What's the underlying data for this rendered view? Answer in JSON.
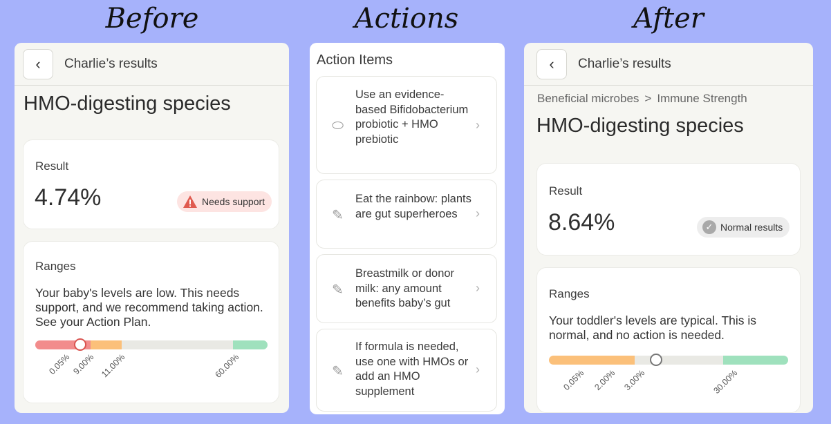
{
  "headings": {
    "before": "Before",
    "actions": "Actions",
    "after": "After"
  },
  "before": {
    "header_title": "Charlie’s results",
    "title": "HMO-digesting species",
    "result_label": "Result",
    "result_value": "4.74%",
    "badge": "Needs support",
    "ranges_label": "Ranges",
    "ranges_desc": "Your baby's levels are low. This needs support, and we recommend taking action. See your Action Plan.",
    "ticks": [
      "0.05%",
      "9.00%",
      "11.00%",
      "60.00%"
    ]
  },
  "actions": {
    "title": "Action Items",
    "items": [
      {
        "icon": "pill-icon",
        "text": "Use an evidence-based Bifidobacterium probiotic + HMO prebiotic"
      },
      {
        "icon": "carrot-icon",
        "text": "Eat the rainbow: plants are gut superheroes"
      },
      {
        "icon": "carrot-icon",
        "text": "Breastmilk or donor milk: any amount benefits baby’s gut"
      },
      {
        "icon": "carrot-icon",
        "text": "If formula is needed, use one with HMOs or add an HMO supplement"
      }
    ]
  },
  "after": {
    "header_title": "Charlie’s results",
    "breadcrumb_1": "Beneficial microbes",
    "breadcrumb_sep": ">",
    "breadcrumb_2": "Immune Strength",
    "title": "HMO-digesting species",
    "result_label": "Result",
    "result_value": "8.64%",
    "badge": "Normal results",
    "ranges_label": "Ranges",
    "ranges_desc": "Your toddler's levels are typical. This is normal, and no action is needed.",
    "ticks": [
      "0.05%",
      "2.00%",
      "3.00%",
      "30.00%"
    ]
  },
  "colors": {
    "red": "#f28c8c",
    "orange": "#fbc07a",
    "gray": "#e9e9e4",
    "green": "#9fe1bd"
  }
}
